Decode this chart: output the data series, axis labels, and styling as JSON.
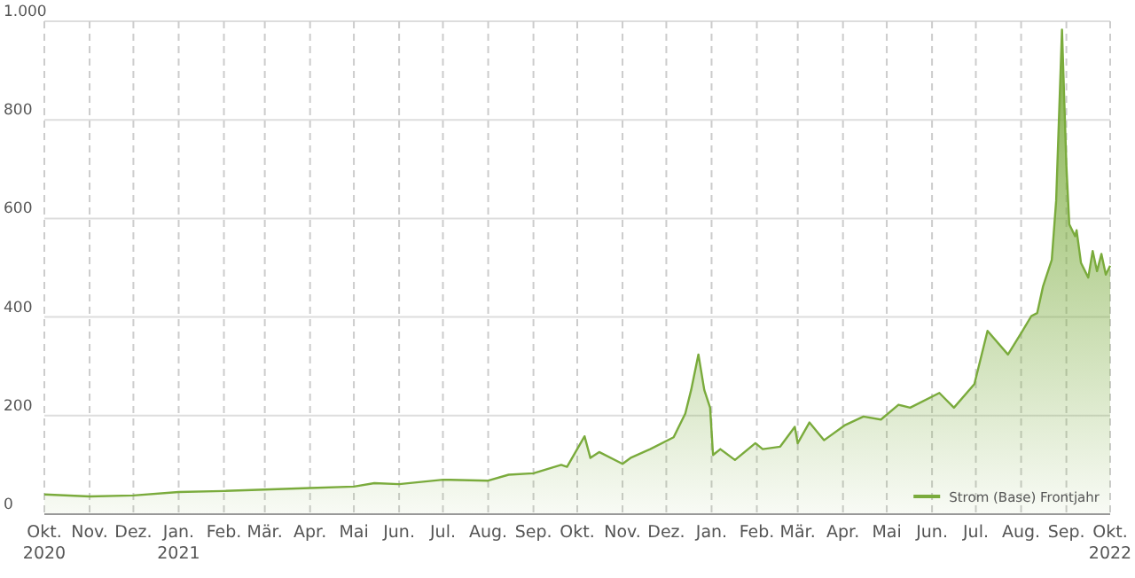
{
  "chart_data": {
    "type": "area",
    "x": [
      "2020-10-01",
      "2020-11-01",
      "2020-12-01",
      "2021-01-01",
      "2021-02-01",
      "2021-03-01",
      "2021-04-01",
      "2021-05-01",
      "2021-05-15",
      "2021-06-01",
      "2021-07-01",
      "2021-08-01",
      "2021-08-15",
      "2021-09-01",
      "2021-09-20",
      "2021-09-24",
      "2021-10-06",
      "2021-10-10",
      "2021-10-16",
      "2021-11-01",
      "2021-11-07",
      "2021-11-20",
      "2021-12-06",
      "2021-12-14",
      "2021-12-18",
      "2021-12-23",
      "2021-12-27",
      "2021-12-31",
      "2022-01-02",
      "2022-01-07",
      "2022-01-17",
      "2022-01-31",
      "2022-02-05",
      "2022-02-17",
      "2022-02-27",
      "2022-03-01",
      "2022-03-09",
      "2022-03-19",
      "2022-04-02",
      "2022-04-15",
      "2022-04-27",
      "2022-05-09",
      "2022-05-17",
      "2022-06-06",
      "2022-06-16",
      "2022-06-30",
      "2022-07-09",
      "2022-07-23",
      "2022-08-02",
      "2022-08-08",
      "2022-08-12",
      "2022-08-16",
      "2022-08-22",
      "2022-08-25",
      "2022-08-29",
      "2022-09-01",
      "2022-09-03",
      "2022-09-07",
      "2022-09-08",
      "2022-09-11",
      "2022-09-16",
      "2022-09-19",
      "2022-09-22",
      "2022-09-25",
      "2022-09-28",
      "2022-10-01"
    ],
    "series": [
      {
        "name": "Strom (Base) Frontjahr",
        "color": "#7aab3c",
        "values": [
          40,
          36,
          38,
          45,
          47,
          50,
          53,
          56,
          63,
          61,
          70,
          68,
          80,
          83,
          100,
          96,
          158,
          114,
          126,
          102,
          115,
          132,
          156,
          204,
          252,
          324,
          252,
          216,
          120,
          132,
          110,
          144,
          132,
          137,
          177,
          144,
          186,
          150,
          180,
          198,
          192,
          222,
          216,
          246,
          216,
          264,
          372,
          324,
          372,
          402,
          408,
          462,
          516,
          636,
          983,
          708,
          588,
          564,
          576,
          510,
          480,
          534,
          493,
          528,
          486,
          504
        ]
      }
    ],
    "xlim": [
      "2020-10-01",
      "2022-10-01"
    ],
    "xticks": [
      {
        "value": "2020-10-01",
        "label": "Okt.\n2020"
      },
      {
        "value": "2020-11-01",
        "label": "Nov."
      },
      {
        "value": "2020-12-01",
        "label": "Dez."
      },
      {
        "value": "2021-01-01",
        "label": "Jan.\n2021"
      },
      {
        "value": "2021-02-01",
        "label": "Feb."
      },
      {
        "value": "2021-03-01",
        "label": "Mär."
      },
      {
        "value": "2021-04-01",
        "label": "Apr."
      },
      {
        "value": "2021-05-01",
        "label": "Mai"
      },
      {
        "value": "2021-06-01",
        "label": "Jun."
      },
      {
        "value": "2021-07-01",
        "label": "Jul."
      },
      {
        "value": "2021-08-01",
        "label": "Aug."
      },
      {
        "value": "2021-09-01",
        "label": "Sep."
      },
      {
        "value": "2021-10-01",
        "label": "Okt."
      },
      {
        "value": "2021-11-01",
        "label": "Nov."
      },
      {
        "value": "2021-12-01",
        "label": "Dez."
      },
      {
        "value": "2022-01-01",
        "label": "Jan."
      },
      {
        "value": "2022-02-01",
        "label": "Feb."
      },
      {
        "value": "2022-03-01",
        "label": "Mär."
      },
      {
        "value": "2022-04-01",
        "label": "Apr."
      },
      {
        "value": "2022-05-01",
        "label": "Mai"
      },
      {
        "value": "2022-06-01",
        "label": "Jun."
      },
      {
        "value": "2022-07-01",
        "label": "Jul."
      },
      {
        "value": "2022-08-01",
        "label": "Aug."
      },
      {
        "value": "2022-09-01",
        "label": "Sep."
      },
      {
        "value": "2022-10-01",
        "label": "Okt.\n2022"
      }
    ],
    "ylim": [
      0,
      1000
    ],
    "yticks": [
      0,
      200,
      400,
      600,
      800,
      {
        "value": 1000,
        "label": "1.000"
      }
    ],
    "grid": true,
    "legend": "bottom right"
  }
}
